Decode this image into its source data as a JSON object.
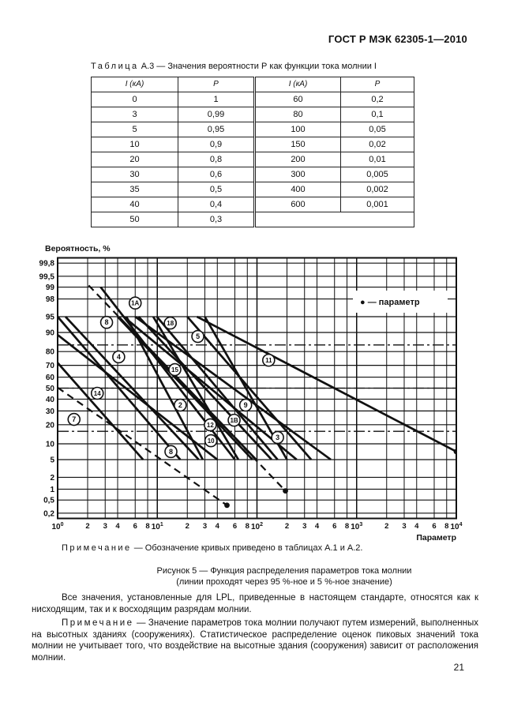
{
  "page": {
    "header": "ГОСТ Р МЭК 62305-1—2010",
    "page_number": "21"
  },
  "table": {
    "caption_label": "Таблица",
    "caption_text": " А.3 — Значения вероятности Р  как функции тока молнии I",
    "col_headers": [
      "I (кА)",
      "Р",
      "I (кА)",
      "Р"
    ],
    "left_rows": [
      [
        "0",
        "1"
      ],
      [
        "3",
        "0,99"
      ],
      [
        "5",
        "0,95"
      ],
      [
        "10",
        "0,9"
      ],
      [
        "20",
        "0,8"
      ],
      [
        "30",
        "0,6"
      ],
      [
        "35",
        "0,5"
      ],
      [
        "40",
        "0,4"
      ],
      [
        "50",
        "0,3"
      ]
    ],
    "right_rows": [
      [
        "60",
        "0,2"
      ],
      [
        "80",
        "0,1"
      ],
      [
        "100",
        "0,05"
      ],
      [
        "150",
        "0,02"
      ],
      [
        "200",
        "0,01"
      ],
      [
        "300",
        "0,005"
      ],
      [
        "400",
        "0,002"
      ],
      [
        "600",
        "0,001"
      ],
      [
        "",
        ""
      ]
    ]
  },
  "chart_data": {
    "type": "line",
    "title": "Рисунок 5 — Функция распределения параметров тока молнии",
    "subtitle": "(линии проходят через 95 %-ное и 5 %-ное значение)",
    "ylabel": "Вероятность, %",
    "xlabel": "Параметр",
    "x_axis": {
      "scale": "log",
      "min": 1,
      "max": 10000,
      "decades": [
        0,
        1,
        2,
        3,
        4
      ],
      "minor_ticks": [
        2,
        3,
        4,
        6,
        8
      ]
    },
    "y_axis": {
      "scale": "normal-probability",
      "ticks": [
        [
          99.8,
          "99,8"
        ],
        [
          99.5,
          "99,5"
        ],
        [
          99,
          "99"
        ],
        [
          98,
          "98"
        ],
        [
          95,
          "95"
        ],
        [
          90,
          "90"
        ],
        [
          80,
          "80"
        ],
        [
          70,
          "70"
        ],
        [
          60,
          "60"
        ],
        [
          50,
          "50"
        ],
        [
          40,
          "40"
        ],
        [
          30,
          "30"
        ],
        [
          20,
          "20"
        ],
        [
          10,
          "10"
        ],
        [
          5,
          "5"
        ],
        [
          2,
          "2"
        ],
        [
          1,
          "1"
        ],
        [
          0.5,
          "0,5"
        ],
        [
          0.2,
          "0,2"
        ]
      ],
      "dashdot_levels": [
        84,
        50,
        16
      ]
    },
    "legend": {
      "text": "● — параметр"
    },
    "series": [
      {
        "id": "s1",
        "style": "solid",
        "points": [
          [
            1.0,
            95
          ],
          [
            17,
            5
          ]
        ]
      },
      {
        "id": "s2",
        "style": "solid",
        "points": [
          [
            1.2,
            95
          ],
          [
            26,
            5
          ]
        ]
      },
      {
        "id": "s3",
        "style": "solid",
        "points": [
          [
            1.0,
            89
          ],
          [
            40,
            5
          ]
        ]
      },
      {
        "id": "s4",
        "style": "solid",
        "points": [
          [
            1.0,
            72
          ],
          [
            7.2,
            5
          ]
        ]
      },
      {
        "id": "s5",
        "style": "solid",
        "points": [
          [
            2.7,
            99
          ],
          [
            60,
            5
          ]
        ]
      },
      {
        "id": "s6",
        "style": "solid",
        "points": [
          [
            4.0,
            95
          ],
          [
            90,
            5
          ]
        ]
      },
      {
        "id": "s7",
        "style": "solid",
        "points": [
          [
            4.9,
            95
          ],
          [
            28.6,
            5
          ]
        ]
      },
      {
        "id": "s8",
        "style": "solid",
        "points": [
          [
            4.6,
            95
          ],
          [
            250,
            5
          ]
        ]
      },
      {
        "id": "s9",
        "style": "solid",
        "points": [
          [
            6.0,
            95
          ],
          [
            550,
            5
          ]
        ]
      },
      {
        "id": "s10",
        "style": "solid",
        "points": [
          [
            9.1,
            95
          ],
          [
            65,
            5
          ]
        ]
      },
      {
        "id": "s11",
        "style": "solid",
        "points": [
          [
            9.9,
            95
          ],
          [
            161,
            5
          ]
        ]
      },
      {
        "id": "s12",
        "style": "solid",
        "points": [
          [
            4.1,
            95
          ],
          [
            98,
            5
          ]
        ]
      },
      {
        "id": "s13",
        "style": "solid",
        "points": [
          [
            20,
            95
          ],
          [
            350,
            5
          ]
        ]
      },
      {
        "id": "s14",
        "style": "solid",
        "points": [
          [
            25,
            95
          ],
          [
            10000,
            7.2
          ]
        ],
        "end_dot": true
      },
      {
        "id": "s15",
        "style": "solid",
        "points": [
          [
            30,
            95
          ],
          [
            200,
            5
          ]
        ]
      },
      {
        "id": "s16",
        "style": "solid",
        "points": [
          [
            6.5,
            95
          ],
          [
            140,
            5
          ]
        ]
      },
      {
        "id": "s17",
        "style": "dashed",
        "points": [
          [
            2.05,
            99.1
          ],
          [
            193,
            0.9
          ]
        ],
        "end_dot": true
      },
      {
        "id": "s18",
        "style": "dashed",
        "points": [
          [
            1.0,
            50.5
          ],
          [
            50,
            0.35
          ]
        ],
        "end_dot": true
      }
    ],
    "curve_labels": [
      {
        "text": "1A",
        "x": 6.0,
        "p": 97.5
      },
      {
        "text": "8",
        "x": 3.1,
        "p": 93.5
      },
      {
        "text": "18",
        "x": 13.5,
        "p": 93.3
      },
      {
        "text": "5",
        "x": 25.5,
        "p": 88.3
      },
      {
        "text": "4",
        "x": 4.1,
        "p": 76.4
      },
      {
        "text": "11",
        "x": 131,
        "p": 74
      },
      {
        "text": "15",
        "x": 15,
        "p": 66.5
      },
      {
        "text": "14",
        "x": 2.5,
        "p": 45.3
      },
      {
        "text": "2",
        "x": 17,
        "p": 34.8
      },
      {
        "text": "9",
        "x": 77,
        "p": 34.8
      },
      {
        "text": "7",
        "x": 1.46,
        "p": 23.6
      },
      {
        "text": "1B",
        "x": 59,
        "p": 23
      },
      {
        "text": "12",
        "x": 34,
        "p": 19.9
      },
      {
        "text": "3",
        "x": 161,
        "p": 12.8
      },
      {
        "text": "10",
        "x": 34.5,
        "p": 11.3
      },
      {
        "text": "8",
        "x": 13.7,
        "p": 7.2
      }
    ]
  },
  "notes": {
    "note1_label": "Примечание",
    "note1_text": " — Обозначение кривых приведено в таблицах А.1 и А.2.",
    "figure_caption_line1": "Рисунок 5 — Функция распределения параметров тока молнии",
    "figure_caption_line2": "(линии проходят через 95 %-ное и 5 %-ное значение)",
    "para1": "Все значения, установленные для LPL, приведенные в настоящем стандарте, относятся как к нисходящим, так и к восходящим разрядам молнии.",
    "note2_label": "Примечание",
    "note2_text": " — Значение параметров тока молнии получают путем измерений, выполненных на высотных зданиях (сооружениях). Статистическое распределение оценок пиковых значений тока молнии не учитывает того, что воздействие на высотные здания (сооружения) зависит от расположения молнии."
  }
}
